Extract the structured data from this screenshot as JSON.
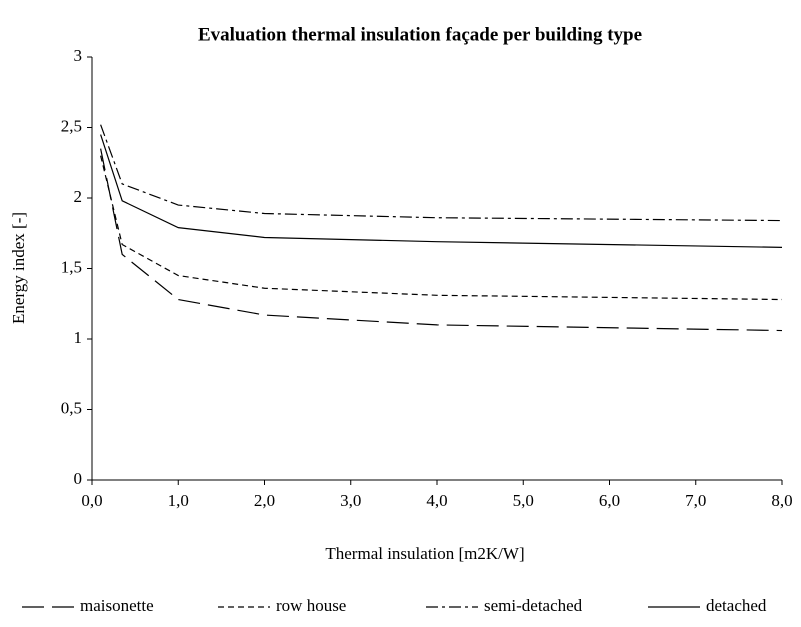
{
  "chart_data": {
    "type": "line",
    "title": "Evaluation thermal insulation façade per building type",
    "x_label": "Thermal insulation [m2K/W]",
    "y_label": "Energy index [-]",
    "xlim": [
      0,
      8
    ],
    "ylim": [
      0,
      3
    ],
    "xticks": [
      {
        "value": 0,
        "label": "0,0"
      },
      {
        "value": 1,
        "label": "1,0"
      },
      {
        "value": 2,
        "label": "2,0"
      },
      {
        "value": 3,
        "label": "3,0"
      },
      {
        "value": 4,
        "label": "4,0"
      },
      {
        "value": 5,
        "label": "5,0"
      },
      {
        "value": 6,
        "label": "6,0"
      },
      {
        "value": 7,
        "label": "7,0"
      },
      {
        "value": 8,
        "label": "8,0"
      }
    ],
    "yticks": [
      0,
      {
        "value": 0.5,
        "label": "0,5"
      },
      1,
      {
        "value": 1.5,
        "label": "1,5"
      },
      2,
      {
        "value": 2.5,
        "label": "2,5"
      },
      3
    ],
    "x": [
      0.1,
      0.35,
      1,
      2,
      4,
      8
    ],
    "grid": false,
    "legend": "bottom",
    "series": [
      {
        "name": "maisonette",
        "color": "#000000",
        "dash": "long-dash",
        "values": [
          2.35,
          1.6,
          1.28,
          1.17,
          1.1,
          1.06
        ]
      },
      {
        "name": "row house",
        "color": "#000000",
        "dash": "short-dash",
        "values": [
          2.3,
          1.67,
          1.45,
          1.36,
          1.31,
          1.28
        ]
      },
      {
        "name": "semi-detached",
        "color": "#000000",
        "dash": "dash-dot",
        "values": [
          2.52,
          2.1,
          1.95,
          1.89,
          1.86,
          1.84
        ]
      },
      {
        "name": "detached",
        "color": "#000000",
        "dash": "solid",
        "values": [
          2.45,
          1.98,
          1.79,
          1.72,
          1.69,
          1.65
        ]
      }
    ]
  }
}
